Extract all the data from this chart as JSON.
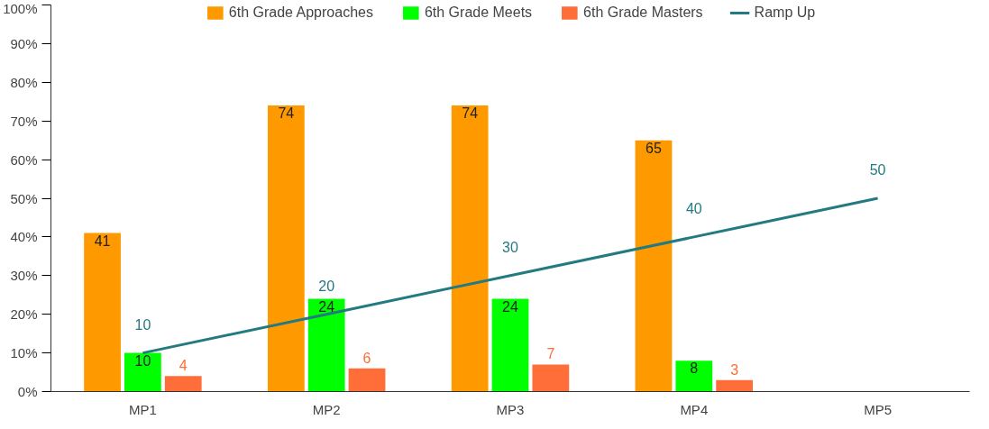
{
  "chart_data": {
    "type": "bar",
    "categories": [
      "MP1",
      "MP2",
      "MP3",
      "MP4",
      "MP5"
    ],
    "series": [
      {
        "name": "6th Grade Approaches",
        "color": "#ff9900",
        "values": [
          41,
          74,
          74,
          65,
          null
        ]
      },
      {
        "name": "6th Grade Meets",
        "color": "#00ff00",
        "values": [
          10,
          24,
          24,
          8,
          null
        ]
      },
      {
        "name": "6th Grade Masters",
        "color": "#ff6d38",
        "values": [
          4,
          6,
          7,
          3,
          null
        ]
      },
      {
        "name": "Ramp Up",
        "type": "line",
        "color": "#237a80",
        "values": [
          10,
          20,
          30,
          40,
          50
        ]
      }
    ],
    "ylim": [
      0,
      100
    ],
    "yticks": [
      {
        "value": 0,
        "label": "0%"
      },
      {
        "value": 10,
        "label": "10%"
      },
      {
        "value": 20,
        "label": "20%"
      },
      {
        "value": 30,
        "label": "30%"
      },
      {
        "value": 40,
        "label": "40%"
      },
      {
        "value": 50,
        "label": "50%"
      },
      {
        "value": 60,
        "label": "60%"
      },
      {
        "value": 70,
        "label": "70%"
      },
      {
        "value": 80,
        "label": "80%"
      },
      {
        "value": 90,
        "label": "90%"
      },
      {
        "value": 100,
        "label": "100%"
      }
    ],
    "data_labels": true,
    "legend": "top",
    "grid": false
  }
}
